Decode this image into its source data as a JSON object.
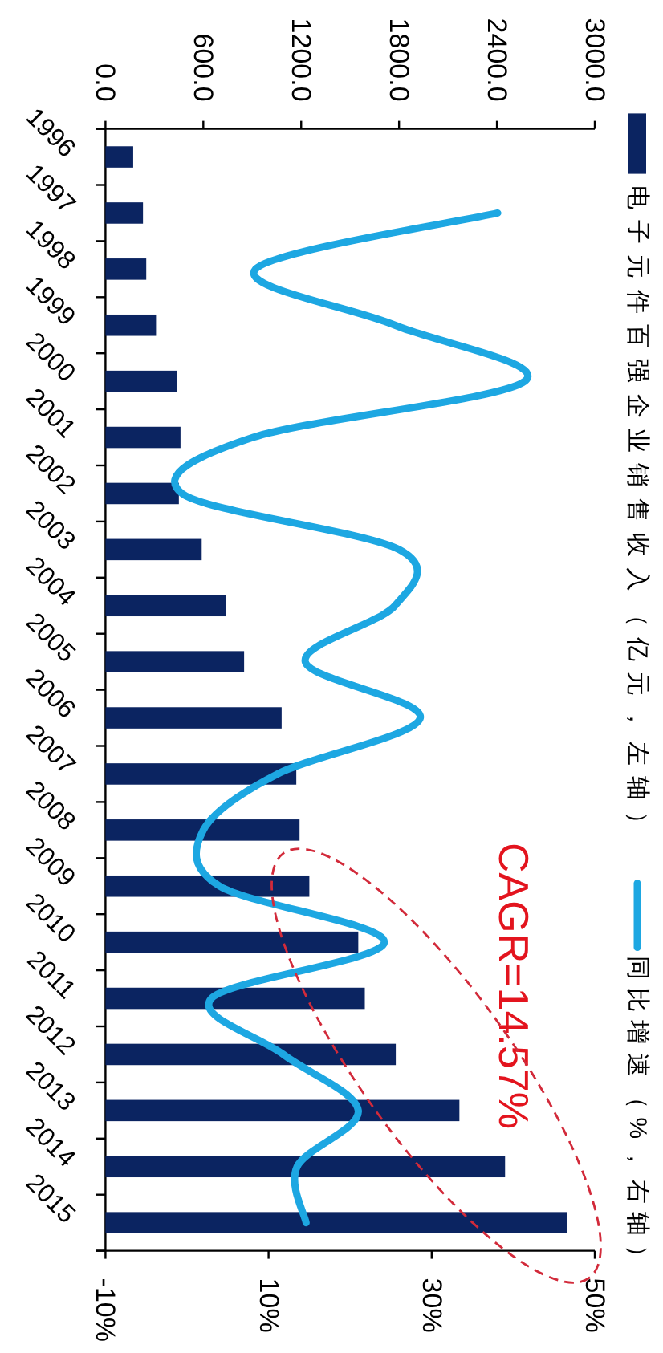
{
  "chart_data": {
    "type": "bar",
    "orientation": "horizontal",
    "categories": [
      "1996",
      "1997",
      "1998",
      "1999",
      "2000",
      "2001",
      "2002",
      "2003",
      "2004",
      "2005",
      "2006",
      "2007",
      "2008",
      "2009",
      "2010",
      "2011",
      "2012",
      "2013",
      "2014",
      "2015"
    ],
    "series": [
      {
        "name": "电子元件百强企业销售收入（亿元，左轴）",
        "axis": "x2",
        "color": "#0b2461",
        "values": [
          170,
          230,
          250,
          310,
          440,
          460,
          450,
          590,
          740,
          850,
          1080,
          1170,
          1190,
          1250,
          1550,
          1590,
          1780,
          2170,
          2450,
          2830
        ]
      },
      {
        "name": "同比增速（%，右轴）",
        "type": "line",
        "color": "#1da7e2",
        "values": [
          null,
          38.1,
          8.4,
          25.5,
          41.4,
          8.1,
          -0.6,
          26.0,
          25.5,
          14.5,
          28.6,
          11.1,
          2.0,
          4.0,
          24.2,
          3.0,
          11.8,
          21.0,
          13.5,
          14.6
        ]
      }
    ],
    "x2lim": [
      0,
      3000
    ],
    "x2ticks": [
      {
        "value": 0,
        "label": "0.0"
      },
      {
        "value": 600,
        "label": "600.0"
      },
      {
        "value": 1200,
        "label": "1200.0"
      },
      {
        "value": 1800,
        "label": "1800.0"
      },
      {
        "value": 2400,
        "label": "2400.0"
      },
      {
        "value": 3000,
        "label": "3000.0"
      }
    ],
    "xlim": [
      -10,
      50
    ],
    "xticks": [
      {
        "value": -10,
        "label": "-10%"
      },
      {
        "value": 10,
        "label": "10%"
      },
      {
        "value": 30,
        "label": "30%"
      },
      {
        "value": 50,
        "label": "50%"
      }
    ],
    "legend": "right",
    "annotations": [
      "CAGR=14.57%"
    ]
  }
}
